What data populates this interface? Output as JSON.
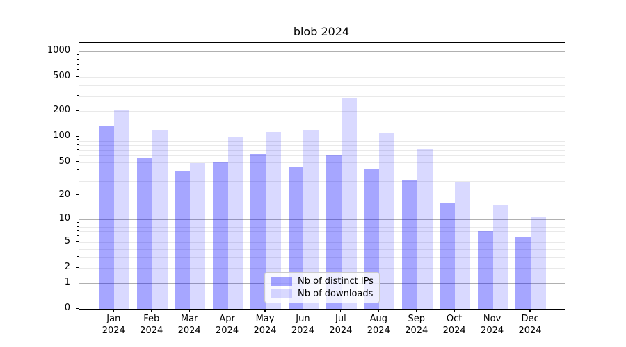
{
  "chart_data": {
    "type": "bar",
    "title": "blob 2024",
    "categories": [
      {
        "month": "Jan",
        "year": "2024"
      },
      {
        "month": "Feb",
        "year": "2024"
      },
      {
        "month": "Mar",
        "year": "2024"
      },
      {
        "month": "Apr",
        "year": "2024"
      },
      {
        "month": "May",
        "year": "2024"
      },
      {
        "month": "Jun",
        "year": "2024"
      },
      {
        "month": "Jul",
        "year": "2024"
      },
      {
        "month": "Aug",
        "year": "2024"
      },
      {
        "month": "Sep",
        "year": "2024"
      },
      {
        "month": "Oct",
        "year": "2024"
      },
      {
        "month": "Nov",
        "year": "2024"
      },
      {
        "month": "Dec",
        "year": "2024"
      }
    ],
    "series": [
      {
        "name": "Nb of distinct IPs",
        "color": "rgba(0,0,255,0.35)",
        "color_hex_on_white": "#a6a6ff",
        "values": [
          137,
          57,
          39,
          50,
          63,
          45,
          62,
          42,
          31,
          16,
          7,
          6
        ]
      },
      {
        "name": "Nb of downloads",
        "color": "rgba(0,0,255,0.15)",
        "color_hex_on_white": "#d9d9ff",
        "values": [
          205,
          121,
          49,
          100,
          115,
          121,
          290,
          112,
          71,
          29,
          15,
          11
        ]
      }
    ],
    "xlabel": "",
    "ylabel": "",
    "yscale": "log1p",
    "ylim": [
      0,
      1254
    ],
    "yticks": [
      0,
      1,
      2,
      5,
      10,
      20,
      50,
      100,
      200,
      500,
      1000
    ],
    "major_grid_values": [
      1,
      10,
      100,
      1000
    ],
    "grid": true,
    "legend_position": "lower center"
  },
  "colors": {
    "grid_major": "#b0b0b0",
    "grid_minor": "#e9e9e9",
    "axis": "#000000",
    "text": "#000000",
    "legend_border": "#cccccc",
    "legend_background": "rgba(255,255,255,0.8)"
  }
}
